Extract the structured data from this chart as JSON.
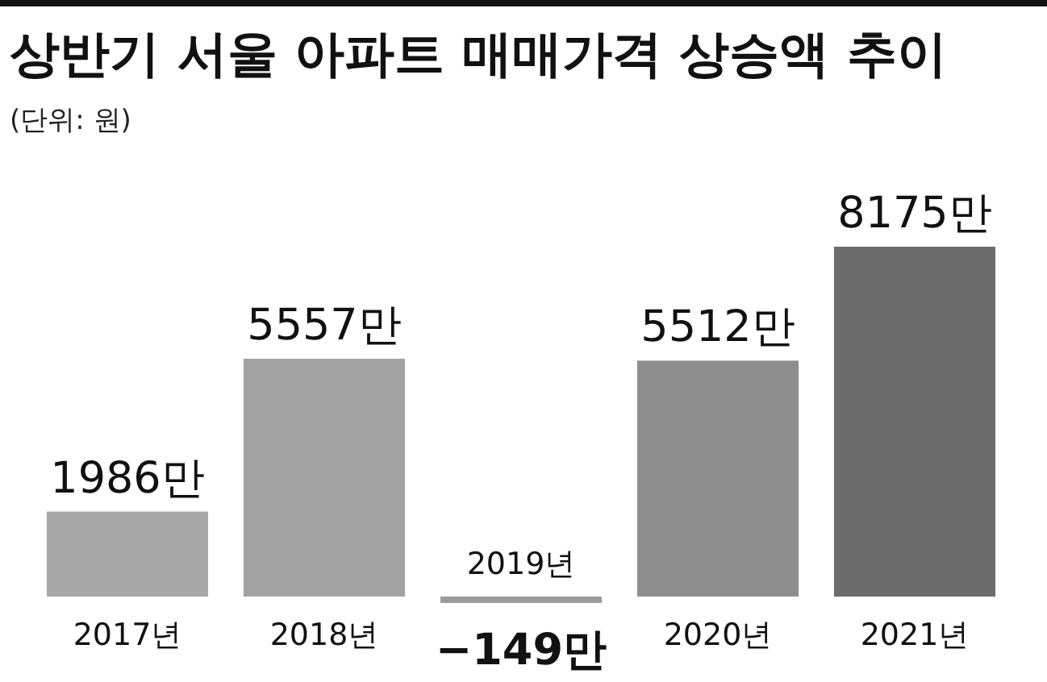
{
  "chart_data": {
    "type": "bar",
    "title": "상반기 서울 아파트 매매가격 상승액 추이",
    "subtitle": "(단위: 원)",
    "categories": [
      "2017년",
      "2018년",
      "2019년",
      "2020년",
      "2021년"
    ],
    "values": [
      1986,
      5557,
      -149,
      5512,
      8175
    ],
    "colors": [
      "#a8a8a8",
      "#a2a2a2",
      "#9a9a9a",
      "#8e8e8e",
      "#6c6c6c"
    ],
    "value_labels": [
      "1986만",
      "5557만",
      "−149만",
      "5512만",
      "8175만"
    ]
  }
}
